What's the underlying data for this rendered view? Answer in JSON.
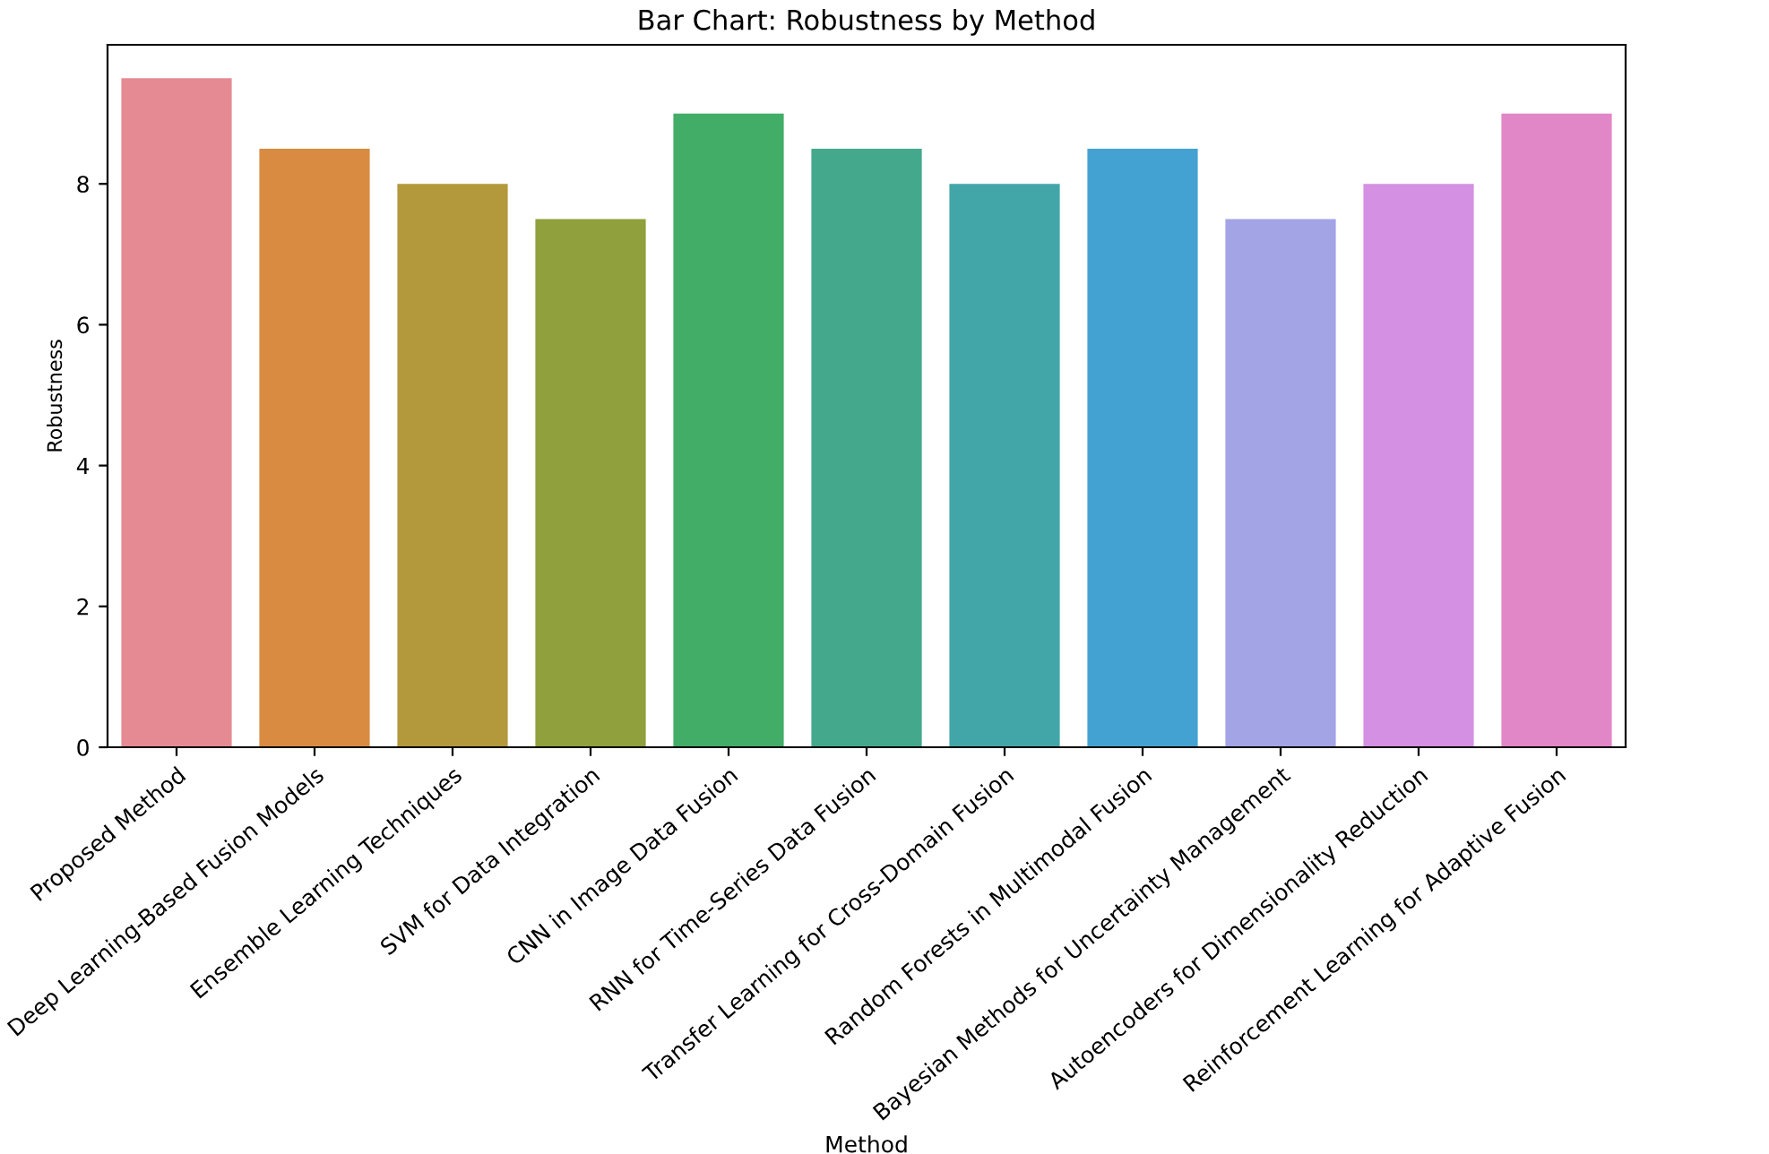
{
  "chart_data": {
    "type": "bar",
    "title": "Bar Chart: Robustness by Method",
    "xlabel": "Method",
    "ylabel": "Robustness",
    "categories": [
      "Proposed Method",
      "Deep Learning-Based Fusion Models",
      "Ensemble Learning Techniques",
      "SVM for Data Integration",
      "CNN in Image Data Fusion",
      "RNN for Time-Series Data Fusion",
      "Transfer Learning for Cross-Domain Fusion",
      "Random Forests in Multimodal Fusion",
      "Bayesian Methods for Uncertainty Management",
      "Autoencoders for Dimensionality Reduction",
      "Reinforcement Learning for Adaptive Fusion"
    ],
    "values": [
      9.5,
      8.5,
      8,
      7.5,
      9,
      8.5,
      8,
      8.5,
      7.5,
      8,
      9
    ],
    "colors": [
      "#e58a93",
      "#d98b41",
      "#b4993c",
      "#8fa03c",
      "#42ad66",
      "#43a88c",
      "#42a6a9",
      "#44a2d2",
      "#a3a4e6",
      "#d490e2",
      "#e186c6"
    ],
    "ylim": [
      0,
      9.975
    ],
    "yticks": [
      0,
      2,
      4,
      6,
      8
    ],
    "grid": false,
    "legend": false
  }
}
